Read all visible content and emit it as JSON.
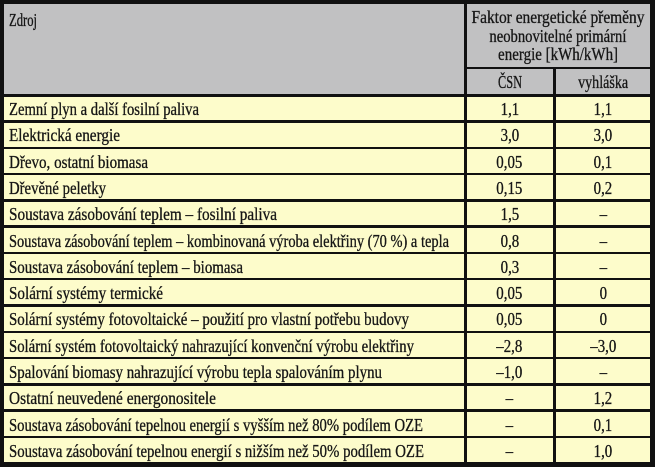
{
  "table": {
    "title_column": "Zdroj",
    "factor_header": {
      "line1": "Faktor energetické přeměny",
      "line2": "neobnovitelné primární",
      "line3": "energie [kWh/kWh]"
    },
    "subheaders": {
      "csn": "ČSN",
      "vyhlaska": "vyhláška"
    },
    "rows": [
      {
        "label": "Zemní plyn a další fosilní paliva",
        "csn": "1,1",
        "vyhlaska": "1,1"
      },
      {
        "label": "Elektrická energie",
        "csn": "3,0",
        "vyhlaska": "3,0"
      },
      {
        "label": "Dřevo, ostatní biomasa",
        "csn": "0,05",
        "vyhlaska": "0,1"
      },
      {
        "label": "Dřevěné peletky",
        "csn": "0,15",
        "vyhlaska": "0,2"
      },
      {
        "label": "Soustava zásobování teplem – fosilní paliva",
        "csn": "1,5",
        "vyhlaska": "–"
      },
      {
        "label": "Soustava zásobování teplem – kombinovaná výroba elektřiny (70 %) a tepla",
        "csn": "0,8",
        "vyhlaska": "–"
      },
      {
        "label": "Soustava zásobování teplem – biomasa",
        "csn": "0,3",
        "vyhlaska": "–"
      },
      {
        "label": "Solární systémy termické",
        "csn": "0,05",
        "vyhlaska": "0"
      },
      {
        "label": "Solární systémy fotovoltaické – použití pro vlastní potřebu budovy",
        "csn": "0,05",
        "vyhlaska": "0"
      },
      {
        "label": "Solární systém fotovoltaický nahrazující konvenční výrobu elektřiny",
        "csn": "–2,8",
        "vyhlaska": "–3,0"
      },
      {
        "label": "Spalování biomasy nahrazující výrobu tepla spalováním plynu",
        "csn": "–1,0",
        "vyhlaska": "–"
      },
      {
        "label": "Ostatní neuvedené energonositele",
        "csn": "–",
        "vyhlaska": "1,2"
      },
      {
        "label": "Soustava zásobování tepelnou energií s vyšším než 80% podílem OZE",
        "csn": "–",
        "vyhlaska": "0,1"
      },
      {
        "label": "Soustava zásobování tepelnou energií s nižším než 50% podílem OZE",
        "csn": "–",
        "vyhlaska": "1,0"
      }
    ],
    "colors": {
      "header_bg": "#c1c1c2",
      "row_bg": "#fdfccb",
      "frame": "#111111",
      "text": "#161616"
    }
  }
}
